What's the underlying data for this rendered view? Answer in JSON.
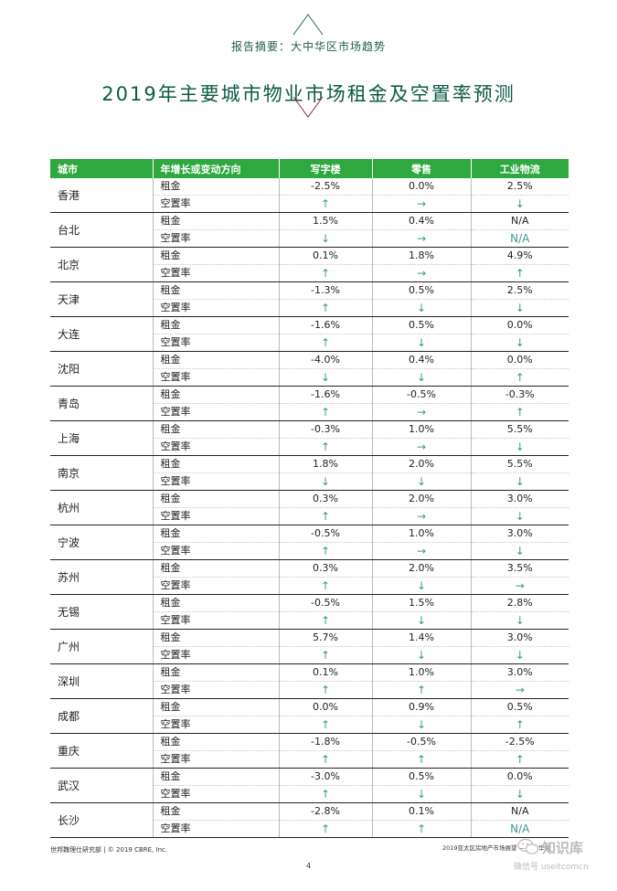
{
  "header": {
    "subtitle": "报告摘要：大中华区市场趋势",
    "title": "2019年主要城市物业市场租金及空置率预测"
  },
  "colors": {
    "brand_green": "#2fa83f",
    "title_green": "#0d5a46",
    "arrow_teal": "#3a9a8a"
  },
  "table": {
    "headers": {
      "city": "城市",
      "metric": "年增长或变动方向",
      "office": "写字楼",
      "retail": "零售",
      "industrial": "工业物流"
    },
    "rows": [
      {
        "city": "香港",
        "rent_label": "租金",
        "vacancy_label": "空置率",
        "rent": [
          "-2.5%",
          "0.0%",
          "2.5%"
        ],
        "vacancy": [
          "↑",
          "→",
          "↓"
        ]
      },
      {
        "city": "台北",
        "rent_label": "租金",
        "vacancy_label": "空置率",
        "rent": [
          "1.5%",
          "0.4%",
          "N/A"
        ],
        "vacancy": [
          "↓",
          "→",
          "N/A"
        ]
      },
      {
        "city": "北京",
        "rent_label": "租金",
        "vacancy_label": "空置率",
        "rent": [
          "0.1%",
          "1.8%",
          "4.9%"
        ],
        "vacancy": [
          "↑",
          "→",
          "↑"
        ]
      },
      {
        "city": "天津",
        "rent_label": "租金",
        "vacancy_label": "空置率",
        "rent": [
          "-1.3%",
          "0.5%",
          "2.5%"
        ],
        "vacancy": [
          "↑",
          "↓",
          "↓"
        ]
      },
      {
        "city": "大连",
        "rent_label": "租金",
        "vacancy_label": "空置率",
        "rent": [
          "-1.6%",
          "0.5%",
          "0.0%"
        ],
        "vacancy": [
          "↑",
          "↓",
          "↓"
        ]
      },
      {
        "city": "沈阳",
        "rent_label": "租金",
        "vacancy_label": "空置率",
        "rent": [
          "-4.0%",
          "0.4%",
          "0.0%"
        ],
        "vacancy": [
          "↓",
          "↓",
          "↑"
        ]
      },
      {
        "city": "青岛",
        "rent_label": "租金",
        "vacancy_label": "空置率",
        "rent": [
          "-1.6%",
          "-0.5%",
          "-0.3%"
        ],
        "vacancy": [
          "↑",
          "→",
          "↑"
        ]
      },
      {
        "city": "上海",
        "rent_label": "租金",
        "vacancy_label": "空置率",
        "rent": [
          "-0.3%",
          "1.0%",
          "5.5%"
        ],
        "vacancy": [
          "↑",
          "→",
          "↓"
        ]
      },
      {
        "city": "南京",
        "rent_label": "租金",
        "vacancy_label": "空置率",
        "rent": [
          "1.8%",
          "2.0%",
          "5.5%"
        ],
        "vacancy": [
          "↓",
          "↓",
          "↓"
        ]
      },
      {
        "city": "杭州",
        "rent_label": "租金",
        "vacancy_label": "空置率",
        "rent": [
          "0.3%",
          "2.0%",
          "3.0%"
        ],
        "vacancy": [
          "↑",
          "→",
          "↓"
        ]
      },
      {
        "city": "宁波",
        "rent_label": "租金",
        "vacancy_label": "空置率",
        "rent": [
          "-0.5%",
          "1.0%",
          "3.0%"
        ],
        "vacancy": [
          "↑",
          "→",
          "↓"
        ]
      },
      {
        "city": "苏州",
        "rent_label": "租金",
        "vacancy_label": "空置率",
        "rent": [
          "0.3%",
          "2.0%",
          "3.5%"
        ],
        "vacancy": [
          "↑",
          "↓",
          "→"
        ]
      },
      {
        "city": "无锡",
        "rent_label": "租金",
        "vacancy_label": "空置率",
        "rent": [
          "-0.5%",
          "1.5%",
          "2.8%"
        ],
        "vacancy": [
          "↑",
          "↓",
          "↓"
        ]
      },
      {
        "city": "广州",
        "rent_label": "租金",
        "vacancy_label": "空置率",
        "rent": [
          "5.7%",
          "1.4%",
          "3.0%"
        ],
        "vacancy": [
          "↑",
          "↓",
          "↓"
        ]
      },
      {
        "city": "深圳",
        "rent_label": "租金",
        "vacancy_label": "空置率",
        "rent": [
          "0.1%",
          "1.0%",
          "3.0%"
        ],
        "vacancy": [
          "↑",
          "↑",
          "→"
        ]
      },
      {
        "city": "成都",
        "rent_label": "租金",
        "vacancy_label": "空置率",
        "rent": [
          "0.0%",
          "0.9%",
          "0.5%"
        ],
        "vacancy": [
          "↑",
          "↓",
          "↑"
        ]
      },
      {
        "city": "重庆",
        "rent_label": "租金",
        "vacancy_label": "空置率",
        "rent": [
          "-1.8%",
          "-0.5%",
          "-2.5%"
        ],
        "vacancy": [
          "↑",
          "↑",
          "↑"
        ]
      },
      {
        "city": "武汉",
        "rent_label": "租金",
        "vacancy_label": "空置率",
        "rent": [
          "-3.0%",
          "0.5%",
          "0.0%"
        ],
        "vacancy": [
          "↑",
          "↓",
          "↓"
        ]
      },
      {
        "city": "长沙",
        "rent_label": "租金",
        "vacancy_label": "空置率",
        "rent": [
          "-2.8%",
          "0.1%",
          "N/A"
        ],
        "vacancy": [
          "↑",
          "↑",
          "N/A"
        ]
      }
    ]
  },
  "footer": {
    "left": "世邦魏理仕研究部 | © 2019 CBRE, Inc.",
    "right": "2019亚太区房地产市场展望 — 大中华区",
    "page_number": "4"
  },
  "watermark": {
    "icon": "wechat-icon",
    "main": "知识库",
    "sub": "微信号 useitcomcn"
  }
}
